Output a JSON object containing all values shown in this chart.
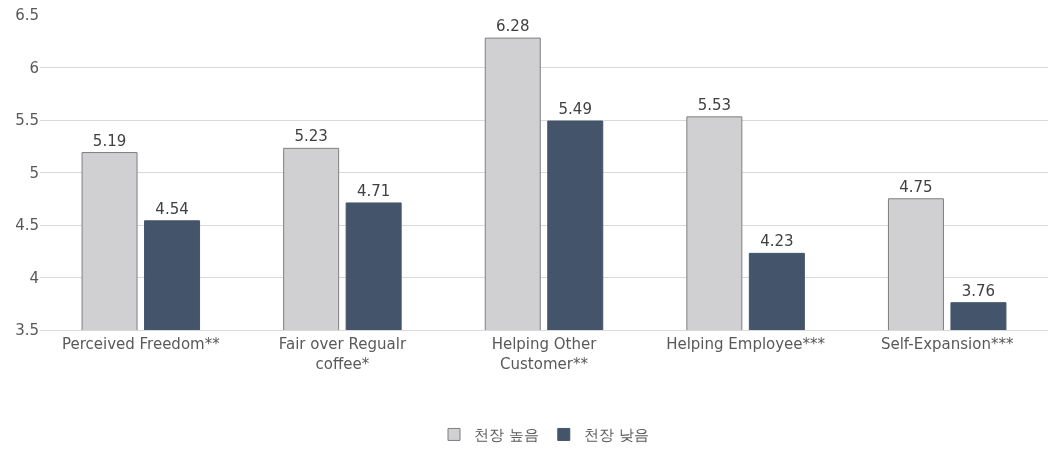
{
  "chart_data": {
    "type": "bar",
    "categories": [
      "Perceived Freedom**",
      "Fair over Regualr coffee*",
      "Helping Other Customer**",
      "Helping Employee***",
      "Self-Expansion***"
    ],
    "series": [
      {
        "name": "천장 높음",
        "color": "#d0cfd1",
        "values": [
          5.19,
          5.23,
          6.28,
          5.53,
          4.75
        ]
      },
      {
        "name": "천장 낮음",
        "color": "#44546a",
        "values": [
          4.54,
          4.71,
          5.49,
          4.23,
          3.76
        ]
      }
    ],
    "ylim": [
      3.5,
      6.5
    ],
    "yticks": [
      3.5,
      4,
      4.5,
      5,
      5.5,
      6,
      6.5
    ],
    "grid": "y",
    "legend": "bottom",
    "data_labels": true
  }
}
